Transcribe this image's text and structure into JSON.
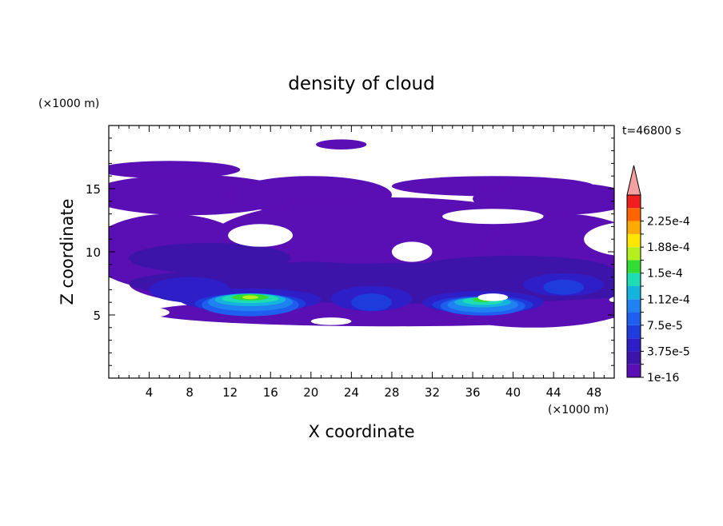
{
  "chart_data": {
    "type": "heatmap",
    "title": "density of cloud",
    "xlabel": "X coordinate",
    "ylabel": "Z coordinate",
    "x_unit": "(×1000 m)",
    "y_unit": "(×1000 m)",
    "time_label": "t=46800 s",
    "xlim": [
      0,
      50
    ],
    "ylim": [
      0,
      20
    ],
    "x_ticks": [
      4,
      8,
      12,
      16,
      20,
      24,
      28,
      32,
      36,
      40,
      44,
      48
    ],
    "y_ticks": [
      5,
      10,
      15
    ],
    "colorbar": {
      "levels": [
        "1e-16",
        "",
        "3.75e-5",
        "",
        "7.5e-5",
        "",
        "1.12e-4",
        "",
        "1.5e-4",
        "",
        "1.88e-4",
        "",
        "2.25e-4",
        ""
      ],
      "colors": [
        "#5a0fb4",
        "#3c14aa",
        "#2d1ec8",
        "#1e3cdc",
        "#1e5ff0",
        "#1e82f0",
        "#14b4dc",
        "#1edcb4",
        "#32dc32",
        "#b4f01e",
        "#ffe600",
        "#ffaa00",
        "#ff6400",
        "#f01e1e"
      ],
      "extend_color": "#f5a0a0"
    },
    "layers": [
      {
        "level": 1,
        "blobs": [
          [
            6,
            16.5,
            7,
            0.7
          ],
          [
            23,
            18.5,
            2.5,
            0.4
          ],
          [
            55,
            17,
            3,
            0.6
          ],
          [
            8,
            14.5,
            10,
            1.6
          ],
          [
            20,
            14.5,
            8,
            1.5
          ],
          [
            38,
            15.2,
            10,
            0.8
          ],
          [
            44,
            14.2,
            8,
            1.3
          ],
          [
            28,
            11,
            18,
            3.3
          ],
          [
            28,
            7.5,
            26,
            2.5
          ],
          [
            6,
            10,
            8,
            3
          ],
          [
            45,
            10,
            8,
            3
          ],
          [
            28,
            5.2,
            24,
            1.1
          ],
          [
            42,
            6,
            10,
            2
          ]
        ]
      },
      {
        "level": 2,
        "blobs": [
          [
            30,
            7.5,
            28,
            1.6
          ],
          [
            10,
            9.5,
            8,
            1.2
          ],
          [
            40,
            8.5,
            10,
            1.2
          ],
          [
            20,
            8,
            8,
            1.2
          ]
        ]
      },
      {
        "level": 3,
        "blobs": [
          [
            14,
            6.2,
            7,
            0.9
          ],
          [
            37,
            6,
            6,
            0.9
          ],
          [
            26,
            6.3,
            4,
            1
          ],
          [
            45,
            7.4,
            4,
            0.9
          ],
          [
            8,
            7,
            4,
            1
          ]
        ]
      },
      {
        "level": 4,
        "blobs": [
          [
            14,
            5.9,
            5.5,
            0.8
          ],
          [
            37,
            5.8,
            5,
            0.7
          ],
          [
            26,
            6,
            2,
            0.7
          ],
          [
            45,
            7.2,
            2,
            0.6
          ]
        ]
      },
      {
        "level": 5,
        "blobs": [
          [
            14,
            5.8,
            4.8,
            0.9
          ],
          [
            37,
            5.7,
            4.2,
            0.75
          ]
        ]
      },
      {
        "level": 6,
        "blobs": [
          [
            14,
            6,
            4.2,
            0.7
          ],
          [
            37,
            5.8,
            3.5,
            0.6
          ]
        ]
      },
      {
        "level": 7,
        "blobs": [
          [
            14,
            6.2,
            3.5,
            0.5
          ],
          [
            37,
            6,
            2.8,
            0.4
          ]
        ]
      },
      {
        "level": 8,
        "blobs": [
          [
            14,
            6.3,
            2.8,
            0.35
          ],
          [
            37,
            6.1,
            2,
            0.3
          ]
        ]
      },
      {
        "level": 9,
        "blobs": [
          [
            14,
            6.4,
            1.8,
            0.25
          ],
          [
            37,
            6.2,
            1,
            0.18
          ]
        ]
      },
      {
        "level": 10,
        "blobs": [
          [
            14,
            6.4,
            0.8,
            0.15
          ]
        ]
      }
    ],
    "holes": [
      [
        15,
        11.3,
        3.2,
        0.9
      ],
      [
        30,
        10,
        2,
        0.8
      ],
      [
        52,
        11,
        5,
        1.4
      ],
      [
        38,
        12.8,
        5,
        0.6
      ],
      [
        4,
        5.2,
        2,
        0.4
      ],
      [
        22,
        4.5,
        2,
        0.3
      ],
      [
        52,
        6.2,
        2.5,
        0.4
      ],
      [
        38,
        6.4,
        1.5,
        0.3
      ]
    ]
  }
}
